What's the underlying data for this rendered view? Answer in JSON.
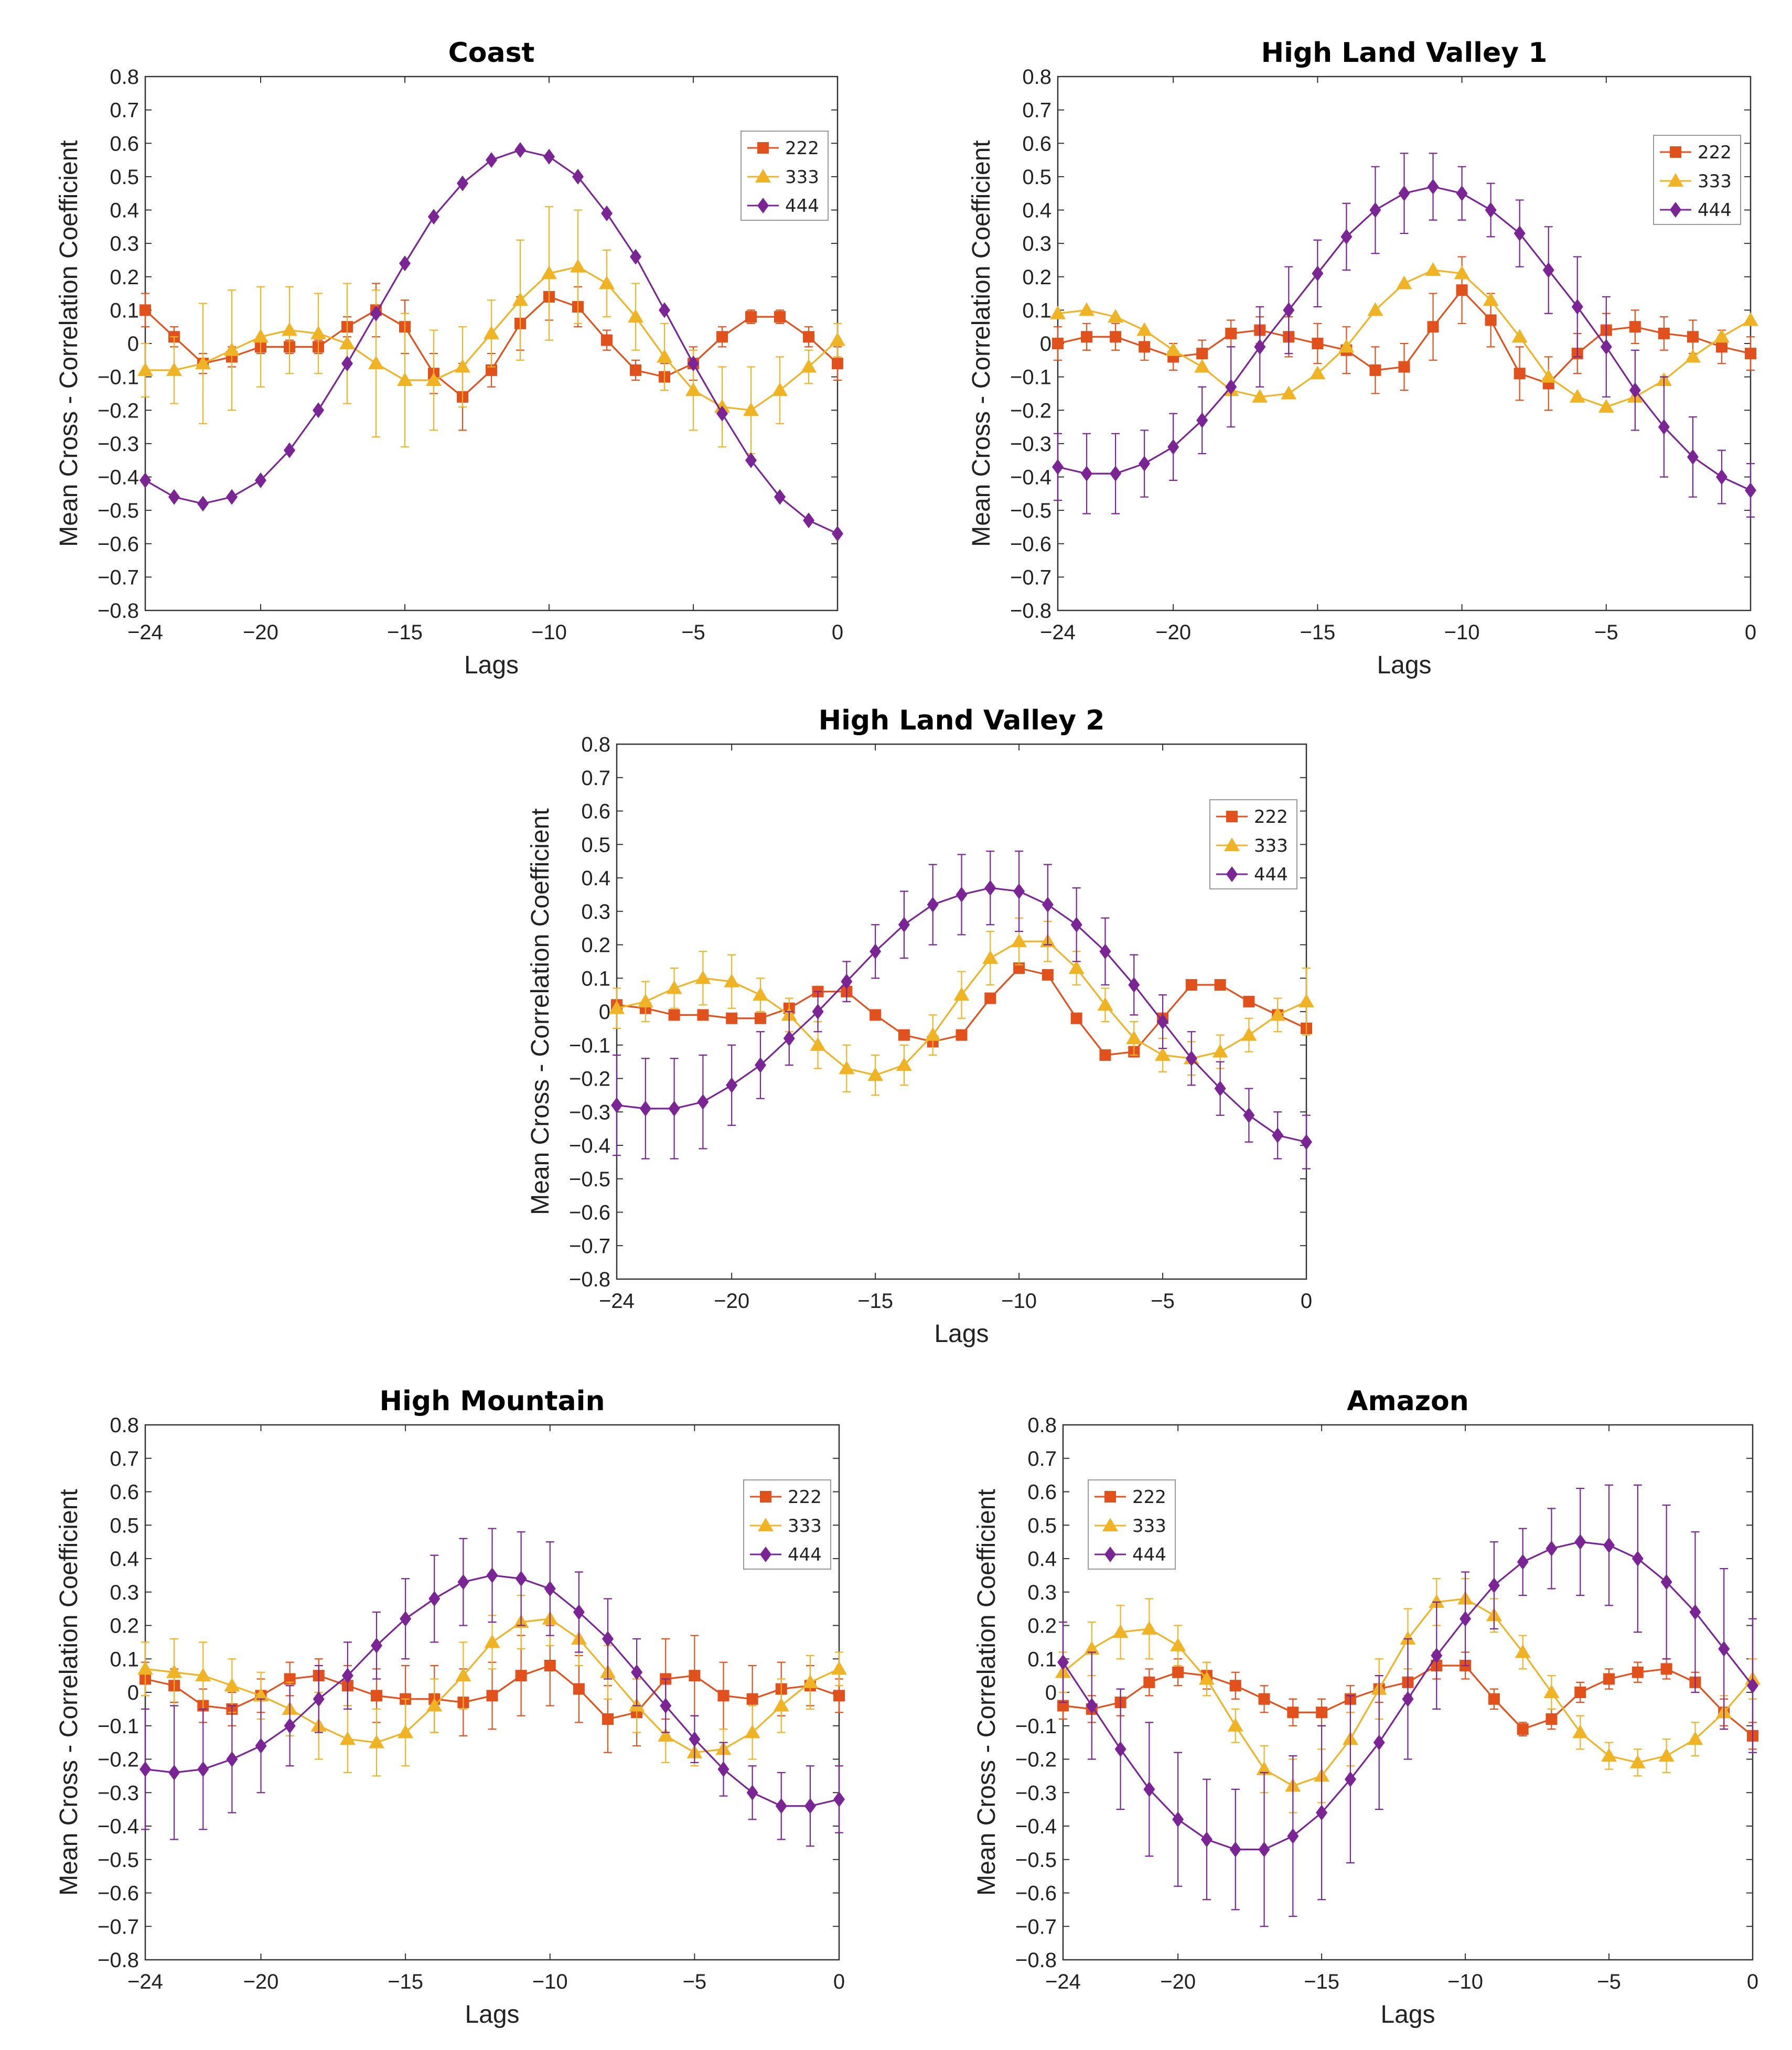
{
  "colors": {
    "s222": "#E2501C",
    "s333": "#F0B323",
    "s444": "#7B2495",
    "axis": "#333333",
    "legendBorder": "#999999"
  },
  "chart_data": [
    {
      "type": "line",
      "title": "Coast",
      "xlabel": "Lags",
      "ylabel": "Mean Cross - Correlation Coefficient",
      "xlim": [
        -24,
        0
      ],
      "ylim": [
        -0.8,
        0.8
      ],
      "legend_position": "top-right",
      "xticks": [
        -24,
        -20,
        -15,
        -10,
        -5,
        0
      ],
      "x": [
        -24,
        -23,
        -22,
        -21,
        -20,
        -19,
        -18,
        -17,
        -16,
        -15,
        -14,
        -13,
        -12,
        -11,
        -10,
        -9,
        -8,
        -7,
        -6,
        -5,
        -4,
        -3,
        -2,
        -1,
        0
      ],
      "series": [
        {
          "name": "222",
          "marker": "square",
          "values": [
            0.1,
            0.02,
            -0.06,
            -0.04,
            -0.01,
            -0.01,
            -0.01,
            0.05,
            0.1,
            0.05,
            -0.09,
            -0.16,
            -0.08,
            0.06,
            0.14,
            0.11,
            0.01,
            -0.08,
            -0.1,
            -0.06,
            0.02,
            0.08,
            0.08,
            0.02,
            -0.06
          ],
          "errors": [
            0.05,
            0.03,
            0.03,
            0.03,
            0.02,
            0.02,
            0.02,
            0.03,
            0.08,
            0.08,
            0.06,
            0.1,
            0.05,
            0.08,
            0.07,
            0.06,
            0.03,
            0.03,
            0.04,
            0.05,
            0.03,
            0.02,
            0.02,
            0.03,
            0.05
          ]
        },
        {
          "name": "333",
          "marker": "triangle",
          "values": [
            -0.08,
            -0.08,
            -0.06,
            -0.02,
            0.02,
            0.04,
            0.03,
            0.0,
            -0.06,
            -0.11,
            -0.11,
            -0.07,
            0.03,
            0.13,
            0.21,
            0.23,
            0.18,
            0.08,
            -0.04,
            -0.14,
            -0.19,
            -0.2,
            -0.14,
            -0.07,
            0.01
          ],
          "errors": [
            0.08,
            0.1,
            0.18,
            0.18,
            0.15,
            0.13,
            0.12,
            0.18,
            0.22,
            0.2,
            0.15,
            0.12,
            0.1,
            0.18,
            0.2,
            0.17,
            0.1,
            0.1,
            0.1,
            0.12,
            0.12,
            0.13,
            0.1,
            0.05,
            0.05
          ]
        },
        {
          "name": "444",
          "marker": "diamond",
          "values": [
            -0.41,
            -0.46,
            -0.48,
            -0.46,
            -0.41,
            -0.32,
            -0.2,
            -0.06,
            0.09,
            0.24,
            0.38,
            0.48,
            0.55,
            0.58,
            0.56,
            0.5,
            0.39,
            0.26,
            0.1,
            -0.06,
            -0.21,
            -0.35,
            -0.46,
            -0.53,
            -0.57
          ]
        }
      ]
    },
    {
      "type": "line",
      "title": "High Land Valley 1",
      "xlabel": "Lags",
      "ylabel": "Mean Cross - Correlation Coefficient",
      "xlim": [
        -24,
        0
      ],
      "ylim": [
        -0.8,
        0.8
      ],
      "legend_position": "top-right",
      "xticks": [
        -24,
        -20,
        -15,
        -10,
        -5,
        0
      ],
      "x": [
        -24,
        -23,
        -22,
        -21,
        -20,
        -19,
        -18,
        -17,
        -16,
        -15,
        -14,
        -13,
        -12,
        -11,
        -10,
        -9,
        -8,
        -7,
        -6,
        -5,
        -4,
        -3,
        -2,
        -1,
        0
      ],
      "series": [
        {
          "name": "222",
          "marker": "square",
          "values": [
            0.0,
            0.02,
            0.02,
            -0.01,
            -0.04,
            -0.03,
            0.03,
            0.04,
            0.02,
            0.0,
            -0.02,
            -0.08,
            -0.07,
            0.05,
            0.16,
            0.07,
            -0.09,
            -0.12,
            -0.03,
            0.04,
            0.05,
            0.03,
            0.02,
            -0.01,
            -0.03
          ],
          "errors": [
            0.05,
            0.04,
            0.04,
            0.04,
            0.04,
            0.04,
            0.04,
            0.04,
            0.06,
            0.06,
            0.07,
            0.07,
            0.07,
            0.1,
            0.1,
            0.08,
            0.08,
            0.08,
            0.06,
            0.05,
            0.05,
            0.05,
            0.05,
            0.05,
            0.05
          ]
        },
        {
          "name": "333",
          "marker": "triangle",
          "values": [
            0.09,
            0.1,
            0.08,
            0.04,
            -0.02,
            -0.07,
            -0.14,
            -0.16,
            -0.15,
            -0.09,
            -0.01,
            0.1,
            0.18,
            0.22,
            0.21,
            0.13,
            0.02,
            -0.1,
            -0.16,
            -0.19,
            -0.16,
            -0.11,
            -0.04,
            0.02,
            0.07
          ]
        },
        {
          "name": "444",
          "marker": "diamond",
          "values": [
            -0.37,
            -0.39,
            -0.39,
            -0.36,
            -0.31,
            -0.23,
            -0.13,
            -0.01,
            0.1,
            0.21,
            0.32,
            0.4,
            0.45,
            0.47,
            0.45,
            0.4,
            0.33,
            0.22,
            0.11,
            -0.01,
            -0.14,
            -0.25,
            -0.34,
            -0.4,
            -0.44
          ],
          "errors": [
            0.1,
            0.12,
            0.12,
            0.1,
            0.1,
            0.1,
            0.12,
            0.12,
            0.13,
            0.1,
            0.1,
            0.13,
            0.12,
            0.1,
            0.08,
            0.08,
            0.1,
            0.13,
            0.15,
            0.15,
            0.12,
            0.15,
            0.12,
            0.08,
            0.08
          ]
        }
      ]
    },
    {
      "type": "line",
      "title": "High Land Valley 2",
      "xlabel": "Lags",
      "ylabel": "Mean Cross - Correlation Coefficient",
      "xlim": [
        -24,
        0
      ],
      "ylim": [
        -0.8,
        0.8
      ],
      "legend_position": "top-right",
      "xticks": [
        -24,
        -20,
        -15,
        -10,
        -5,
        0
      ],
      "x": [
        -24,
        -23,
        -22,
        -21,
        -20,
        -19,
        -18,
        -17,
        -16,
        -15,
        -14,
        -13,
        -12,
        -11,
        -10,
        -9,
        -8,
        -7,
        -6,
        -5,
        -4,
        -3,
        -2,
        -1,
        0
      ],
      "series": [
        {
          "name": "222",
          "marker": "square",
          "values": [
            0.02,
            0.01,
            -0.01,
            -0.01,
            -0.02,
            -0.02,
            0.01,
            0.06,
            0.06,
            -0.01,
            -0.07,
            -0.09,
            -0.07,
            0.04,
            0.13,
            0.11,
            -0.02,
            -0.13,
            -0.12,
            -0.02,
            0.08,
            0.08,
            0.03,
            -0.01,
            -0.05
          ]
        },
        {
          "name": "333",
          "marker": "triangle",
          "values": [
            0.01,
            0.03,
            0.07,
            0.1,
            0.09,
            0.05,
            -0.01,
            -0.1,
            -0.17,
            -0.19,
            -0.16,
            -0.07,
            0.05,
            0.16,
            0.21,
            0.21,
            0.13,
            0.02,
            -0.08,
            -0.13,
            -0.14,
            -0.12,
            -0.07,
            -0.01,
            0.03
          ],
          "errors": [
            0.06,
            0.06,
            0.06,
            0.08,
            0.08,
            0.05,
            0.05,
            0.07,
            0.07,
            0.06,
            0.06,
            0.06,
            0.07,
            0.08,
            0.07,
            0.06,
            0.05,
            0.05,
            0.05,
            0.05,
            0.05,
            0.05,
            0.05,
            0.05,
            0.1
          ]
        },
        {
          "name": "444",
          "marker": "diamond",
          "values": [
            -0.28,
            -0.29,
            -0.29,
            -0.27,
            -0.22,
            -0.16,
            -0.08,
            0.0,
            0.09,
            0.18,
            0.26,
            0.32,
            0.35,
            0.37,
            0.36,
            0.32,
            0.26,
            0.18,
            0.08,
            -0.03,
            -0.14,
            -0.23,
            -0.31,
            -0.37,
            -0.39
          ],
          "errors": [
            0.15,
            0.15,
            0.15,
            0.14,
            0.12,
            0.1,
            0.08,
            0.06,
            0.06,
            0.08,
            0.1,
            0.12,
            0.12,
            0.11,
            0.12,
            0.12,
            0.11,
            0.1,
            0.09,
            0.08,
            0.08,
            0.08,
            0.08,
            0.07,
            0.08
          ]
        }
      ]
    },
    {
      "type": "line",
      "title": "High Mountain",
      "xlabel": "Lags",
      "ylabel": "Mean Cross - Correlation Coefficient",
      "xlim": [
        -24,
        0
      ],
      "ylim": [
        -0.8,
        0.8
      ],
      "legend_position": "top-right",
      "xticks": [
        -24,
        -20,
        -15,
        -10,
        -5,
        0
      ],
      "x": [
        -24,
        -23,
        -22,
        -21,
        -20,
        -19,
        -18,
        -17,
        -16,
        -15,
        -14,
        -13,
        -12,
        -11,
        -10,
        -9,
        -8,
        -7,
        -6,
        -5,
        -4,
        -3,
        -2,
        -1,
        0
      ],
      "series": [
        {
          "name": "222",
          "marker": "square",
          "values": [
            0.04,
            0.02,
            -0.04,
            -0.05,
            -0.01,
            0.04,
            0.05,
            0.02,
            -0.01,
            -0.02,
            -0.02,
            -0.03,
            -0.01,
            0.05,
            0.08,
            0.01,
            -0.08,
            -0.06,
            0.04,
            0.05,
            -0.01,
            -0.02,
            0.01,
            0.02,
            -0.01
          ],
          "errors": [
            0.05,
            0.05,
            0.05,
            0.05,
            0.05,
            0.05,
            0.05,
            0.06,
            0.08,
            0.1,
            0.1,
            0.1,
            0.1,
            0.12,
            0.12,
            0.1,
            0.1,
            0.1,
            0.12,
            0.12,
            0.1,
            0.1,
            0.08,
            0.06,
            0.05
          ]
        },
        {
          "name": "333",
          "marker": "triangle",
          "values": [
            0.07,
            0.06,
            0.05,
            0.02,
            -0.01,
            -0.05,
            -0.1,
            -0.14,
            -0.15,
            -0.12,
            -0.04,
            0.05,
            0.15,
            0.21,
            0.22,
            0.16,
            0.06,
            -0.04,
            -0.13,
            -0.18,
            -0.17,
            -0.12,
            -0.04,
            0.03,
            0.07
          ],
          "errors": [
            0.08,
            0.1,
            0.1,
            0.08,
            0.07,
            0.08,
            0.1,
            0.1,
            0.1,
            0.1,
            0.08,
            0.1,
            0.08,
            0.08,
            0.08,
            0.08,
            0.08,
            0.08,
            0.08,
            0.04,
            0.06,
            0.08,
            0.08,
            0.08,
            0.05
          ]
        },
        {
          "name": "444",
          "marker": "diamond",
          "values": [
            -0.23,
            -0.24,
            -0.23,
            -0.2,
            -0.16,
            -0.1,
            -0.02,
            0.05,
            0.14,
            0.22,
            0.28,
            0.33,
            0.35,
            0.34,
            0.31,
            0.24,
            0.16,
            0.06,
            -0.04,
            -0.14,
            -0.23,
            -0.3,
            -0.34,
            -0.34,
            -0.32
          ],
          "errors": [
            0.18,
            0.2,
            0.18,
            0.16,
            0.14,
            0.12,
            0.1,
            0.1,
            0.1,
            0.12,
            0.13,
            0.13,
            0.14,
            0.14,
            0.14,
            0.12,
            0.12,
            0.1,
            0.08,
            0.07,
            0.08,
            0.08,
            0.1,
            0.12,
            0.1
          ]
        }
      ]
    },
    {
      "type": "line",
      "title": "Amazon",
      "xlabel": "Lags",
      "ylabel": "Mean Cross - Correlation Coefficient",
      "xlim": [
        -24,
        0
      ],
      "ylim": [
        -0.8,
        0.8
      ],
      "legend_position": "top-left",
      "xticks": [
        -24,
        -20,
        -15,
        -10,
        -5,
        0
      ],
      "x": [
        -24,
        -23,
        -22,
        -21,
        -20,
        -19,
        -18,
        -17,
        -16,
        -15,
        -14,
        -13,
        -12,
        -11,
        -10,
        -9,
        -8,
        -7,
        -6,
        -5,
        -4,
        -3,
        -2,
        -1,
        0
      ],
      "series": [
        {
          "name": "222",
          "marker": "square",
          "values": [
            -0.04,
            -0.05,
            -0.03,
            0.03,
            0.06,
            0.05,
            0.02,
            -0.02,
            -0.06,
            -0.06,
            -0.02,
            0.01,
            0.03,
            0.08,
            0.08,
            -0.02,
            -0.11,
            -0.08,
            0.0,
            0.04,
            0.06,
            0.07,
            0.03,
            -0.06,
            -0.13
          ],
          "errors": [
            0.04,
            0.04,
            0.04,
            0.04,
            0.04,
            0.04,
            0.04,
            0.04,
            0.04,
            0.04,
            0.04,
            0.04,
            0.04,
            0.04,
            0.04,
            0.03,
            0.02,
            0.03,
            0.03,
            0.03,
            0.03,
            0.03,
            0.03,
            0.04,
            0.04
          ]
        },
        {
          "name": "333",
          "marker": "triangle",
          "values": [
            0.06,
            0.13,
            0.18,
            0.19,
            0.14,
            0.04,
            -0.1,
            -0.23,
            -0.28,
            -0.25,
            -0.14,
            0.01,
            0.16,
            0.27,
            0.28,
            0.23,
            0.12,
            0.0,
            -0.12,
            -0.19,
            -0.21,
            -0.19,
            -0.14,
            -0.06,
            0.04
          ],
          "errors": [
            0.06,
            0.08,
            0.08,
            0.09,
            0.06,
            0.05,
            0.05,
            0.07,
            0.08,
            0.08,
            0.08,
            0.09,
            0.09,
            0.07,
            0.06,
            0.05,
            0.05,
            0.05,
            0.05,
            0.04,
            0.04,
            0.05,
            0.05,
            0.05,
            0.06
          ]
        },
        {
          "name": "444",
          "marker": "diamond",
          "values": [
            0.09,
            -0.04,
            -0.17,
            -0.29,
            -0.38,
            -0.44,
            -0.47,
            -0.47,
            -0.43,
            -0.36,
            -0.26,
            -0.15,
            -0.02,
            0.11,
            0.22,
            0.32,
            0.39,
            0.43,
            0.45,
            0.44,
            0.4,
            0.33,
            0.24,
            0.13,
            0.02
          ],
          "errors": [
            0.12,
            0.16,
            0.18,
            0.2,
            0.2,
            0.18,
            0.18,
            0.23,
            0.24,
            0.26,
            0.25,
            0.2,
            0.18,
            0.16,
            0.14,
            0.13,
            0.1,
            0.12,
            0.16,
            0.18,
            0.22,
            0.23,
            0.24,
            0.24,
            0.2
          ]
        }
      ]
    }
  ]
}
